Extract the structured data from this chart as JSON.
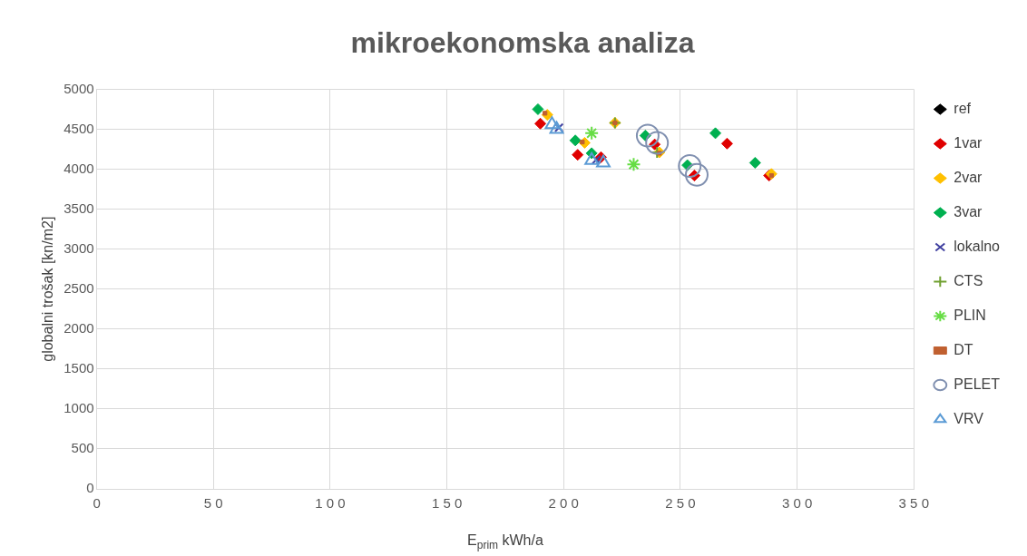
{
  "chart_data": {
    "type": "scatter",
    "title": "mikroekonomska analiza",
    "xlabel": "E$_{prim}$ kWh/a",
    "ylabel": "globalni trošak [kn/m2]",
    "xlim": [
      0,
      350
    ],
    "xticks": [
      0,
      50,
      100,
      150,
      200,
      250,
      300,
      350
    ],
    "ylim": [
      0,
      5000
    ],
    "yticks": [
      0,
      500,
      1000,
      1500,
      2000,
      2500,
      3000,
      3500,
      4000,
      4500,
      5000
    ],
    "grid": true,
    "legend": "right",
    "series": [
      {
        "name": "ref",
        "color": "#000000",
        "marker": "diamond"
      },
      {
        "name": "1var",
        "color": "#e00000",
        "marker": "diamond",
        "x": [
          190,
          206,
          216,
          239,
          256,
          270,
          288
        ],
        "values": [
          4570,
          4180,
          4150,
          4310,
          3920,
          4320,
          3920
        ]
      },
      {
        "name": "2var",
        "color": "#ffc000",
        "marker": "diamond",
        "x": [
          193,
          209,
          222,
          241,
          289
        ],
        "values": [
          4680,
          4330,
          4580,
          4210,
          3940
        ]
      },
      {
        "name": "3var",
        "color": "#00b050",
        "marker": "diamond",
        "x": [
          189,
          205,
          212,
          235,
          253,
          265,
          282
        ],
        "values": [
          4750,
          4360,
          4200,
          4420,
          4050,
          4450,
          4080
        ]
      },
      {
        "name": "lokalno",
        "color": "#4040a0",
        "marker": "x",
        "x": [
          198,
          214
        ],
        "values": [
          4520,
          4120
        ]
      },
      {
        "name": "CTS",
        "color": "#70a030",
        "marker": "plus",
        "x": [
          222,
          240
        ],
        "values": [
          4580,
          4210
        ]
      },
      {
        "name": "PLIN",
        "color": "#66dd44",
        "marker": "cross",
        "x": [
          212,
          230
        ],
        "values": [
          4450,
          4060
        ]
      },
      {
        "name": "DT",
        "color": "#c06030",
        "marker": "square",
        "x": [
          192,
          208,
          222,
          241,
          289
        ],
        "values": [
          4700,
          4340,
          4580,
          4200,
          3920
        ]
      },
      {
        "name": "PELET",
        "color": "#8090b0",
        "marker": "circle",
        "x": [
          236,
          240,
          254,
          257
        ],
        "values": [
          4420,
          4330,
          4040,
          3930
        ]
      },
      {
        "name": "VRV",
        "color": "#5b9bd5",
        "marker": "triangle",
        "x": [
          195,
          197,
          212,
          217
        ],
        "values": [
          4560,
          4500,
          4110,
          4080
        ]
      }
    ]
  }
}
